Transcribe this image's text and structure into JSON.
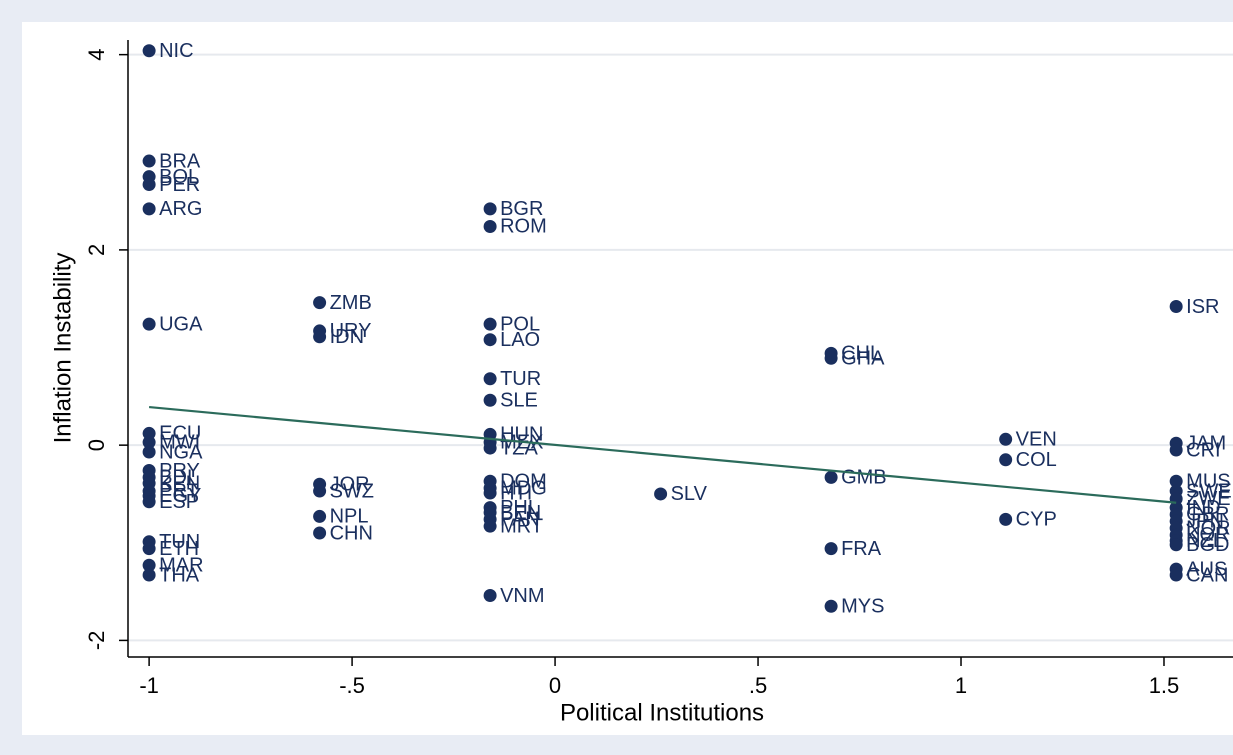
{
  "chart_data": {
    "type": "scatter",
    "xlabel": "Political Institutions",
    "ylabel": "Inflation Instability",
    "xlim": [
      -1.052,
      1.67
    ],
    "ylim": [
      -2.17,
      4.15
    ],
    "xticks": [
      -1,
      {
        "value": -0.5,
        "label": "-.5"
      },
      0,
      {
        "value": 0.5,
        "label": ".5"
      },
      1,
      1.5
    ],
    "yticks": [
      -2,
      0,
      2,
      4
    ],
    "grid": true,
    "color": "#1a2f5e",
    "labels": [
      "NIC",
      "BRA",
      "BOL",
      "PER",
      "ARG",
      "UGA",
      "ECU",
      "MWI",
      "NGA",
      "PRY",
      "BDI",
      "KEN",
      "PRT",
      "EGY",
      "ESP",
      "TUN",
      "ETH",
      "MAR",
      "THA",
      "ZMB",
      "URY",
      "IDN",
      "JOR",
      "SWZ",
      "NPL",
      "CHN",
      "BGR",
      "ROM",
      "POL",
      "LAO",
      "TUR",
      "SLE",
      "HUN",
      "MEX",
      "TZA",
      "DOM",
      "MDG",
      "HTI",
      "PHL",
      "BEN",
      "PAN",
      "MRT",
      "VNM",
      "SLV",
      "CHL",
      "GHA",
      "GMB",
      "FRA",
      "MYS",
      "VEN",
      "COL",
      "CYP",
      "ISR",
      "JAM",
      "CRI",
      "MUS",
      "SWE",
      "ZWE",
      "IND",
      "GBR",
      "JPN",
      "NOR",
      "KOR",
      "NZL",
      "BGD",
      "AUS",
      "CAN"
    ],
    "x": [
      -1,
      -1,
      -1,
      -1,
      -1,
      -1,
      -1,
      -1,
      -1,
      -1,
      -1,
      -1,
      -1,
      -1,
      -1,
      -1,
      -1,
      -1,
      -1,
      -0.58,
      -0.58,
      -0.58,
      -0.58,
      -0.58,
      -0.58,
      -0.58,
      -0.16,
      -0.16,
      -0.16,
      -0.16,
      -0.16,
      -0.16,
      -0.16,
      -0.16,
      -0.16,
      -0.16,
      -0.16,
      -0.16,
      -0.16,
      -0.16,
      -0.16,
      -0.16,
      -0.16,
      0.26,
      0.68,
      0.68,
      0.68,
      0.68,
      0.68,
      1.11,
      1.11,
      1.11,
      1.53,
      1.53,
      1.53,
      1.53,
      1.53,
      1.53,
      1.53,
      1.53,
      1.53,
      1.53,
      1.53,
      1.53,
      1.53,
      1.53,
      1.53
    ],
    "y": [
      4.04,
      2.91,
      2.75,
      2.67,
      2.42,
      1.24,
      0.12,
      0.03,
      -0.07,
      -0.26,
      -0.33,
      -0.39,
      -0.47,
      -0.52,
      -0.58,
      -0.99,
      -1.06,
      -1.23,
      -1.33,
      1.46,
      1.17,
      1.11,
      -0.4,
      -0.47,
      -0.73,
      -0.9,
      2.42,
      2.24,
      1.24,
      1.08,
      0.68,
      0.46,
      0.11,
      0.03,
      -0.03,
      -0.37,
      -0.44,
      -0.49,
      -0.64,
      -0.69,
      -0.76,
      -0.83,
      -1.54,
      -0.5,
      0.94,
      0.89,
      -0.33,
      -1.06,
      -1.65,
      0.06,
      -0.15,
      -0.76,
      1.42,
      0.02,
      -0.05,
      -0.37,
      -0.47,
      -0.55,
      -0.64,
      -0.71,
      -0.78,
      -0.85,
      -0.92,
      -0.98,
      -1.02,
      -1.27,
      -1.33
    ],
    "fit_line": {
      "color": "#2b6b5b",
      "x": [
        -1,
        1.53
      ],
      "y": [
        0.39,
        -0.59
      ]
    }
  }
}
